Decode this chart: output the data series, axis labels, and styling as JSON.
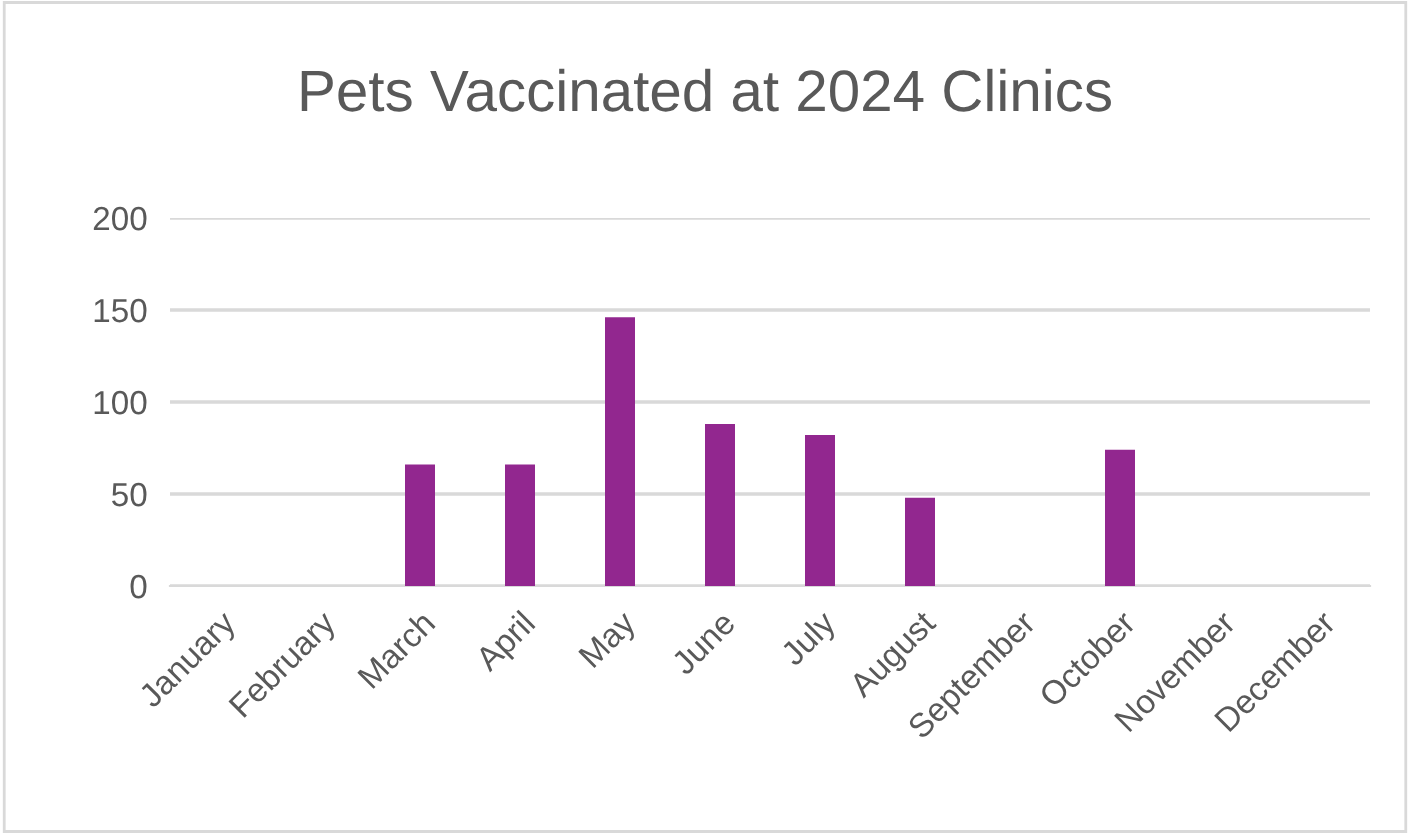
{
  "chart_data": {
    "type": "bar",
    "title": "Pets Vaccinated at 2024 Clinics",
    "categories": [
      "January",
      "February",
      "March",
      "April",
      "May",
      "June",
      "July",
      "August",
      "September",
      "October",
      "November",
      "December"
    ],
    "values": [
      0,
      0,
      66,
      66,
      146,
      88,
      82,
      48,
      0,
      74,
      0,
      0
    ],
    "color": "#92278f",
    "ylim": [
      0,
      200
    ],
    "yticks": [
      0,
      50,
      100,
      150,
      200
    ],
    "grid": "y",
    "legend": false
  }
}
